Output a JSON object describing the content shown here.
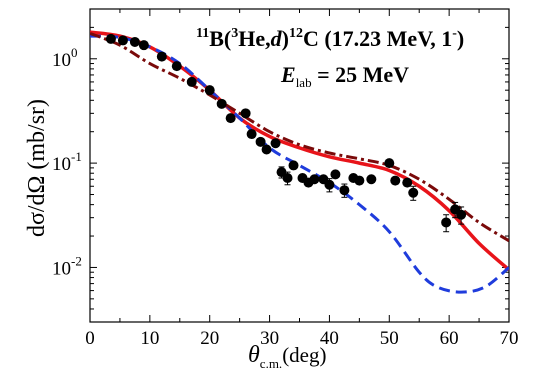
{
  "chart_data": {
    "type": "scatter",
    "annotation": {
      "reaction_sup1": "11",
      "reaction_main1": "B(",
      "reaction_sup2": "3",
      "reaction_main2": "He,",
      "reaction_italic": "d",
      "reaction_main3": ")",
      "reaction_sup3": "12",
      "reaction_main4": "C (17.23 MeV, 1",
      "reaction_sup4": "-",
      "reaction_main5": ")",
      "energy_italic": "E",
      "energy_sub": "lab",
      "energy_rest": " = 25 MeV"
    },
    "xlabel": {
      "symbol": "θ",
      "sub": "c.m.",
      "unit": "(deg)"
    },
    "ylabel": "dσ/dΩ (mb/sr)",
    "xlim": [
      0,
      70
    ],
    "ylim_log": [
      0.003,
      3
    ],
    "yscale": "log",
    "x_ticks": [
      "0",
      "10",
      "20",
      "30",
      "40",
      "50",
      "60",
      "70"
    ],
    "y_ticks": [
      {
        "value": 1,
        "base": "10",
        "exp": "0"
      },
      {
        "value": 0.1,
        "base": "10",
        "exp": "-1"
      },
      {
        "value": 0.01,
        "base": "10",
        "exp": "-2"
      }
    ],
    "x_tick_values": [
      0,
      10,
      20,
      30,
      40,
      50,
      60,
      70
    ],
    "data_points": [
      {
        "x": 3.5,
        "y": 1.55
      },
      {
        "x": 5.5,
        "y": 1.5
      },
      {
        "x": 7.5,
        "y": 1.45
      },
      {
        "x": 9,
        "y": 1.35
      },
      {
        "x": 12,
        "y": 1.05
      },
      {
        "x": 14.5,
        "y": 0.85
      },
      {
        "x": 17,
        "y": 0.6
      },
      {
        "x": 20,
        "y": 0.5
      },
      {
        "x": 22,
        "y": 0.37
      },
      {
        "x": 23.5,
        "y": 0.27
      },
      {
        "x": 26,
        "y": 0.3
      },
      {
        "x": 27,
        "y": 0.19
      },
      {
        "x": 28.5,
        "y": 0.16
      },
      {
        "x": 29.5,
        "y": 0.135
      },
      {
        "x": 31,
        "y": 0.155
      },
      {
        "x": 32,
        "y": 0.082,
        "err": 0.01
      },
      {
        "x": 33,
        "y": 0.072,
        "err": 0.01
      },
      {
        "x": 34,
        "y": 0.095
      },
      {
        "x": 35.5,
        "y": 0.072
      },
      {
        "x": 36.5,
        "y": 0.065
      },
      {
        "x": 37.5,
        "y": 0.07
      },
      {
        "x": 39,
        "y": 0.07
      },
      {
        "x": 40,
        "y": 0.062,
        "err": 0.009
      },
      {
        "x": 41,
        "y": 0.078
      },
      {
        "x": 42.5,
        "y": 0.055,
        "err": 0.008
      },
      {
        "x": 44,
        "y": 0.072
      },
      {
        "x": 45,
        "y": 0.068
      },
      {
        "x": 47,
        "y": 0.07
      },
      {
        "x": 50,
        "y": 0.1
      },
      {
        "x": 51,
        "y": 0.068
      },
      {
        "x": 53,
        "y": 0.065
      },
      {
        "x": 54,
        "y": 0.052,
        "err": 0.008
      },
      {
        "x": 59.5,
        "y": 0.027,
        "err": 0.005
      },
      {
        "x": 61,
        "y": 0.036,
        "err": 0.006
      },
      {
        "x": 62,
        "y": 0.032,
        "err": 0.006
      }
    ],
    "series": [
      {
        "style": "solid",
        "color": "#e8141a",
        "x": [
          0,
          5,
          10,
          15,
          20,
          25,
          30,
          35,
          40,
          45,
          50,
          55,
          60,
          65,
          70
        ],
        "y": [
          1.8,
          1.65,
          1.3,
          0.85,
          0.5,
          0.27,
          0.18,
          0.14,
          0.115,
          0.1,
          0.085,
          0.06,
          0.035,
          0.017,
          0.0095
        ]
      },
      {
        "style": "dash",
        "color": "#1f3cdc",
        "x": [
          0,
          5,
          10,
          15,
          20,
          25,
          30,
          35,
          40,
          45,
          50,
          55,
          58,
          62,
          66,
          70
        ],
        "y": [
          1.65,
          1.6,
          1.3,
          0.9,
          0.5,
          0.27,
          0.14,
          0.095,
          0.065,
          0.04,
          0.022,
          0.009,
          0.0065,
          0.0058,
          0.0065,
          0.01
        ]
      },
      {
        "style": "dashdot",
        "color": "#7a0a0a",
        "x": [
          0,
          5,
          10,
          15,
          20,
          25,
          30,
          35,
          40,
          45,
          50,
          55,
          60,
          65,
          70
        ],
        "y": [
          1.75,
          1.35,
          0.9,
          0.65,
          0.45,
          0.3,
          0.2,
          0.15,
          0.125,
          0.11,
          0.095,
          0.07,
          0.045,
          0.027,
          0.018
        ]
      }
    ]
  }
}
